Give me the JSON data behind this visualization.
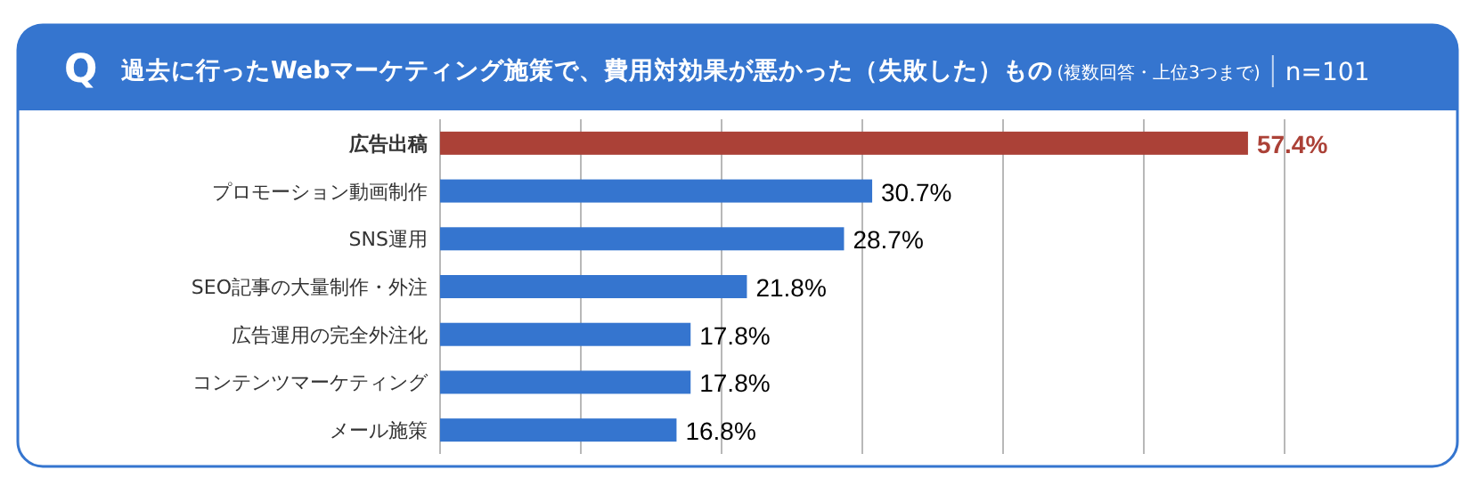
{
  "chart_data": {
    "type": "bar",
    "orientation": "horizontal",
    "title": "過去に行ったWebマーケティング施策で、費用対効果が悪かった（失敗した）もの",
    "subtitle": "(複数回答・上位3つまで)",
    "annotations": [
      "Q",
      "n=101"
    ],
    "categories": [
      "広告出稿",
      "プロモーション動画制作",
      "SNS運用",
      "SEO記事の大量制作・外注",
      "広告運用の完全外注化",
      "コンテンツマーケティング",
      "メール施策"
    ],
    "values": [
      57.4,
      30.7,
      28.7,
      21.8,
      17.8,
      17.8,
      16.8
    ],
    "value_labels": [
      "57.4%",
      "30.7%",
      "28.7%",
      "21.8%",
      "17.8%",
      "17.8%",
      "16.8%"
    ],
    "colors": [
      "#ab4137",
      "#3575cf",
      "#3575cf",
      "#3575cf",
      "#3575cf",
      "#3575cf",
      "#3575cf"
    ],
    "xlim": [
      0,
      60
    ],
    "xticks": [
      {
        "value": 0,
        "label": null
      },
      {
        "value": 10,
        "label": null
      },
      {
        "value": 20,
        "label": null
      },
      {
        "value": 30,
        "label": null
      },
      {
        "value": 40,
        "label": null
      },
      {
        "value": 50,
        "label": null
      },
      {
        "value": 60,
        "label": null
      }
    ],
    "grid": "x"
  }
}
